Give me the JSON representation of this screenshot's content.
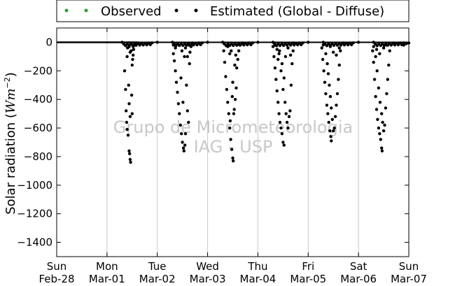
{
  "chart_data": {
    "type": "scatter",
    "title": "",
    "xlabel": "",
    "ylabel": "Solar radiation (",
    "ylabel_unit_base": "Wm",
    "ylabel_unit_exp": "−2",
    "ylabel_close": ")",
    "ylim": [
      -1500,
      100
    ],
    "xlim_days": [
      0,
      7
    ],
    "y_ticks": [
      0,
      -200,
      -400,
      -600,
      -800,
      -1000,
      -1200,
      -1400
    ],
    "y_tick_labels": [
      "0",
      "−200",
      "−400",
      "−600",
      "−800",
      "−1000",
      "−1200",
      "−1400"
    ],
    "x_ticks": [
      {
        "day": "Sun",
        "date": "Feb-28"
      },
      {
        "day": "Mon",
        "date": "Mar-01"
      },
      {
        "day": "Tue",
        "date": "Mar-02"
      },
      {
        "day": "Wed",
        "date": "Mar-03"
      },
      {
        "day": "Thu",
        "date": "Mar-04"
      },
      {
        "day": "Fri",
        "date": "Mar-05"
      },
      {
        "day": "Sat",
        "date": "Mar-06"
      },
      {
        "day": "Sun",
        "date": "Mar-07"
      }
    ],
    "grid": "vertical",
    "legend_placement": "top, outside",
    "watermark": [
      "Grupo de Micrometeorologia",
      "IAG - USP"
    ],
    "series": [
      {
        "name": "Observed",
        "color": "#2ca02c",
        "description": "all visible values at zero (hidden beneath estimated line)",
        "points": [
          [
            0.0,
            0
          ],
          [
            7.0,
            0
          ]
        ]
      },
      {
        "name": "Estimated (Global - Diffuse)",
        "color": "#000000",
        "baseline_line": [
          [
            0.0,
            0
          ],
          [
            1.6,
            0
          ]
        ],
        "points": [
          [
            1.35,
            -200
          ],
          [
            1.37,
            -330
          ],
          [
            1.38,
            -480
          ],
          [
            1.39,
            -560
          ],
          [
            1.4,
            -610
          ],
          [
            1.42,
            -650
          ],
          [
            1.44,
            -760
          ],
          [
            1.45,
            -780
          ],
          [
            1.46,
            -820
          ],
          [
            1.47,
            -840
          ],
          [
            1.4,
            -100
          ],
          [
            1.41,
            -40
          ],
          [
            1.43,
            -300
          ],
          [
            1.44,
            -430
          ],
          [
            1.46,
            -520
          ],
          [
            1.48,
            -60
          ],
          [
            1.5,
            -160
          ],
          [
            1.51,
            -120
          ],
          [
            1.52,
            -90
          ],
          [
            1.53,
            -50
          ],
          [
            1.44,
            -30
          ],
          [
            1.46,
            -70
          ],
          [
            1.49,
            -370
          ],
          [
            1.5,
            -500
          ],
          [
            1.52,
            -30
          ],
          [
            1.55,
            -20
          ],
          [
            1.58,
            -10
          ],
          [
            1.62,
            -5
          ],
          [
            2.32,
            -80
          ],
          [
            2.34,
            -130
          ],
          [
            2.36,
            -200
          ],
          [
            2.38,
            -280
          ],
          [
            2.4,
            -350
          ],
          [
            2.42,
            -430
          ],
          [
            2.44,
            -500
          ],
          [
            2.46,
            -580
          ],
          [
            2.48,
            -640
          ],
          [
            2.5,
            -700
          ],
          [
            2.52,
            -740
          ],
          [
            2.53,
            -760
          ],
          [
            2.55,
            -720
          ],
          [
            2.56,
            -640
          ],
          [
            2.47,
            -250
          ],
          [
            2.49,
            -60
          ],
          [
            2.51,
            -420
          ],
          [
            2.54,
            -100
          ],
          [
            2.56,
            -40
          ],
          [
            2.58,
            -300
          ],
          [
            2.6,
            -480
          ],
          [
            2.62,
            -560
          ],
          [
            2.63,
            -20
          ],
          [
            2.65,
            -70
          ],
          [
            2.67,
            -30
          ],
          [
            2.7,
            -10
          ],
          [
            2.32,
            -20
          ],
          [
            2.36,
            -40
          ],
          [
            2.4,
            -10
          ],
          [
            2.6,
            -100
          ],
          [
            2.64,
            -150
          ],
          [
            3.32,
            -60
          ],
          [
            3.34,
            -140
          ],
          [
            3.36,
            -240
          ],
          [
            3.38,
            -330
          ],
          [
            3.4,
            -420
          ],
          [
            3.42,
            -500
          ],
          [
            3.44,
            -600
          ],
          [
            3.46,
            -680
          ],
          [
            3.48,
            -750
          ],
          [
            3.5,
            -810
          ],
          [
            3.51,
            -830
          ],
          [
            3.45,
            -550
          ],
          [
            3.47,
            -60
          ],
          [
            3.5,
            -280
          ],
          [
            3.52,
            -500
          ],
          [
            3.53,
            -470
          ],
          [
            3.55,
            -400
          ],
          [
            3.57,
            -320
          ],
          [
            3.58,
            -180
          ],
          [
            3.6,
            -120
          ],
          [
            3.62,
            -60
          ],
          [
            3.64,
            -20
          ],
          [
            3.4,
            -30
          ],
          [
            3.44,
            -80
          ],
          [
            3.49,
            -380
          ],
          [
            3.54,
            -160
          ],
          [
            3.56,
            -90
          ],
          [
            4.3,
            -30
          ],
          [
            4.32,
            -100
          ],
          [
            4.34,
            -180
          ],
          [
            4.36,
            -260
          ],
          [
            4.38,
            -340
          ],
          [
            4.4,
            -420
          ],
          [
            4.42,
            -500
          ],
          [
            4.44,
            -560
          ],
          [
            4.46,
            -600
          ],
          [
            4.48,
            -640
          ],
          [
            4.5,
            -700
          ],
          [
            4.52,
            -720
          ],
          [
            4.38,
            -50
          ],
          [
            4.4,
            -120
          ],
          [
            4.43,
            -60
          ],
          [
            4.46,
            -200
          ],
          [
            4.48,
            -150
          ],
          [
            4.5,
            -330
          ],
          [
            4.52,
            -250
          ],
          [
            4.54,
            -420
          ],
          [
            4.56,
            -500
          ],
          [
            4.58,
            -560
          ],
          [
            4.6,
            -600
          ],
          [
            4.62,
            -520
          ],
          [
            4.64,
            -480
          ],
          [
            4.66,
            -300
          ],
          [
            4.68,
            -150
          ],
          [
            4.7,
            -60
          ],
          [
            4.34,
            -20
          ],
          [
            4.42,
            -80
          ],
          [
            4.55,
            -100
          ],
          [
            4.6,
            -40
          ],
          [
            4.65,
            -90
          ],
          [
            5.27,
            -40
          ],
          [
            5.29,
            -120
          ],
          [
            5.31,
            -200
          ],
          [
            5.33,
            -280
          ],
          [
            5.35,
            -360
          ],
          [
            5.37,
            -440
          ],
          [
            5.39,
            -500
          ],
          [
            5.41,
            -560
          ],
          [
            5.43,
            -620
          ],
          [
            5.45,
            -660
          ],
          [
            5.46,
            -690
          ],
          [
            5.35,
            -80
          ],
          [
            5.38,
            -150
          ],
          [
            5.4,
            -220
          ],
          [
            5.42,
            -300
          ],
          [
            5.44,
            -380
          ],
          [
            5.46,
            -460
          ],
          [
            5.48,
            -540
          ],
          [
            5.5,
            -620
          ],
          [
            5.52,
            -600
          ],
          [
            5.54,
            -520
          ],
          [
            5.56,
            -440
          ],
          [
            5.58,
            -360
          ],
          [
            5.6,
            -260
          ],
          [
            5.62,
            -160
          ],
          [
            5.64,
            -60
          ],
          [
            5.3,
            -20
          ],
          [
            5.44,
            -30
          ],
          [
            5.5,
            -70
          ],
          [
            5.56,
            -90
          ],
          [
            5.62,
            -40
          ],
          [
            6.28,
            -60
          ],
          [
            6.3,
            -140
          ],
          [
            6.32,
            -260
          ],
          [
            6.34,
            -380
          ],
          [
            6.36,
            -470
          ],
          [
            6.38,
            -540
          ],
          [
            6.4,
            -600
          ],
          [
            6.42,
            -640
          ],
          [
            6.44,
            -680
          ],
          [
            6.46,
            -740
          ],
          [
            6.47,
            -760
          ],
          [
            6.34,
            -100
          ],
          [
            6.37,
            -200
          ],
          [
            6.4,
            -320
          ],
          [
            6.43,
            -420
          ],
          [
            6.46,
            -500
          ],
          [
            6.48,
            -560
          ],
          [
            6.5,
            -620
          ],
          [
            6.52,
            -580
          ],
          [
            6.54,
            -460
          ],
          [
            6.56,
            -360
          ],
          [
            6.58,
            -260
          ],
          [
            6.6,
            -160
          ],
          [
            6.62,
            -60
          ],
          [
            6.3,
            -30
          ],
          [
            6.36,
            -50
          ],
          [
            6.42,
            -80
          ],
          [
            6.5,
            -40
          ],
          [
            6.56,
            -20
          ],
          [
            1.6,
            -5
          ],
          [
            2.0,
            0
          ],
          [
            2.7,
            -5
          ],
          [
            3.0,
            0
          ],
          [
            3.7,
            -5
          ],
          [
            4.0,
            0
          ],
          [
            4.7,
            -5
          ],
          [
            5.0,
            0
          ],
          [
            5.7,
            -5
          ],
          [
            6.0,
            0
          ],
          [
            6.7,
            -5
          ],
          [
            6.9,
            -20
          ],
          [
            6.95,
            -10
          ],
          [
            7.0,
            -5
          ]
        ]
      }
    ]
  }
}
